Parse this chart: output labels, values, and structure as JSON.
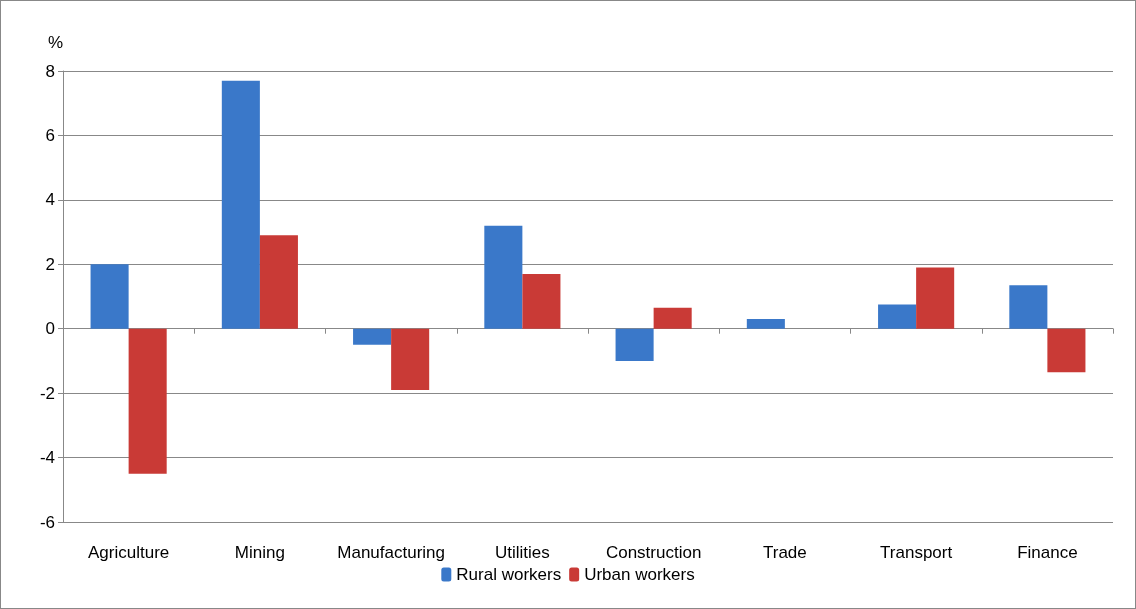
{
  "chart_data": {
    "type": "bar",
    "ylabel": "%",
    "categories": [
      "Agriculture",
      "Mining",
      "Manufacturing",
      "Utilities",
      "Construction",
      "Trade",
      "Transport",
      "Finance"
    ],
    "series": [
      {
        "name": "Rural workers",
        "color": "#3a78c9",
        "values": [
          2.0,
          7.7,
          -0.5,
          3.2,
          -1.0,
          0.3,
          0.75,
          1.35
        ]
      },
      {
        "name": "Urban workers",
        "color": "#c93a36",
        "values": [
          -4.5,
          2.9,
          -1.9,
          1.7,
          0.65,
          0,
          1.9,
          -1.35
        ]
      }
    ],
    "ylim": [
      -6,
      8
    ],
    "yticks": [
      -6,
      -4,
      -2,
      0,
      2,
      4,
      6,
      8
    ],
    "grid": "y",
    "legend": "bottom"
  }
}
